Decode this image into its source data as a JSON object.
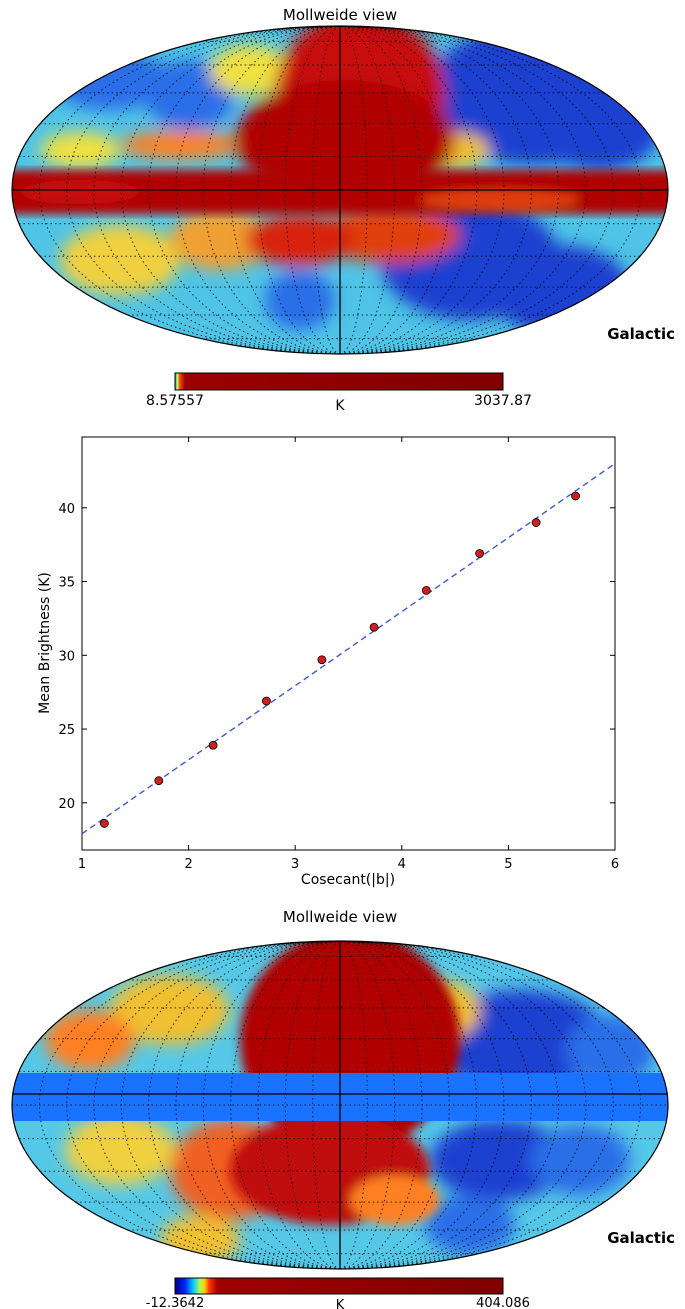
{
  "panels": {
    "top_map": {
      "title": "Mollweide view",
      "coord_label": "Galactic",
      "colorbar": {
        "min_label": "8.57557",
        "max_label": "3037.87",
        "unit": "K"
      }
    },
    "bottom_map": {
      "title": "Mollweide view",
      "coord_label": "Galactic",
      "colorbar": {
        "min_label": "-12.3642",
        "max_label": "404.086",
        "unit": "K"
      }
    }
  },
  "colors": {
    "map_red": "#b00000",
    "map_blue": "#0a3fd6",
    "map_cyan": "#55c8e8",
    "mask_band": "#1a73ff",
    "fit_line": "#3a5ad8",
    "marker": "#d21e1e"
  },
  "chart_data": {
    "type": "scatter",
    "title": "",
    "xlabel": "Cosecant(|b|)",
    "ylabel": "Mean Brightness (K)",
    "xlim": [
      1,
      6
    ],
    "ylim": [
      16.8,
      44.8
    ],
    "xticks": [
      "1",
      "2",
      "3",
      "4",
      "5",
      "6"
    ],
    "yticks": [
      "20",
      "25",
      "30",
      "35",
      "40"
    ],
    "grid": false,
    "series": [
      {
        "kind": "markers",
        "x": [
          1.21,
          1.72,
          2.23,
          2.73,
          3.25,
          3.74,
          4.23,
          4.73,
          5.26,
          5.63
        ],
        "y": [
          18.6,
          21.5,
          23.9,
          26.9,
          29.7,
          31.9,
          34.4,
          36.9,
          39.0,
          40.8
        ]
      },
      {
        "kind": "dashed-fit",
        "x": [
          1.0,
          6.0
        ],
        "y": [
          17.9,
          43.0
        ]
      }
    ]
  }
}
